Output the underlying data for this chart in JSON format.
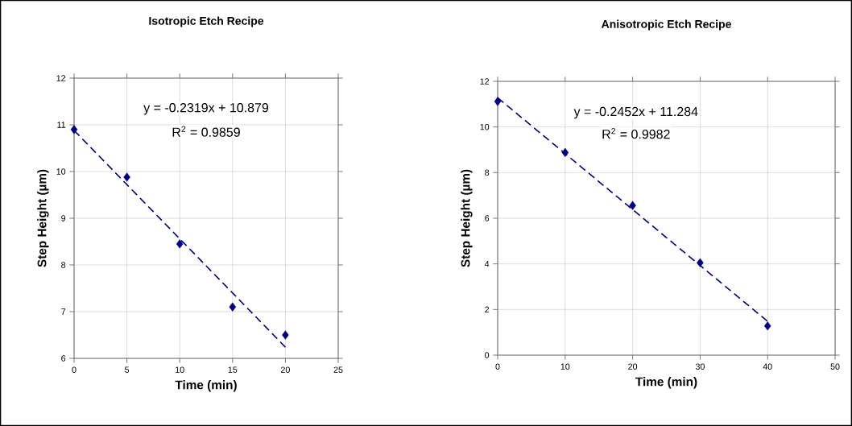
{
  "chart_data": [
    {
      "type": "scatter",
      "title": "Isotropic Etch Recipe",
      "xlabel": "Time (min)",
      "ylabel": "Step Height (µm)",
      "xlim": [
        0,
        25
      ],
      "ylim": [
        6,
        12
      ],
      "xticks": [
        0,
        5,
        10,
        15,
        20,
        25
      ],
      "yticks": [
        6,
        7,
        8,
        9,
        10,
        11,
        12
      ],
      "grid": true,
      "series": [
        {
          "marker": "diamond",
          "color": "#000080",
          "x": [
            0,
            5,
            10,
            15,
            20
          ],
          "values": [
            10.9,
            9.88,
            8.45,
            7.1,
            6.5
          ]
        },
        {
          "type": "line",
          "line_style": "dashed",
          "color": "#000080",
          "x": [
            0,
            20
          ],
          "values": [
            10.88,
            6.24
          ]
        }
      ],
      "annotations": [
        "y = -0.2319x + 10.879",
        "R$^{2}$ = 0.9859"
      ]
    },
    {
      "type": "scatter",
      "title": "Anisotropic Etch Recipe",
      "xlabel": "Time (min)",
      "ylabel": "Step Height (µm)",
      "xlim": [
        0,
        50
      ],
      "ylim": [
        0,
        12
      ],
      "xticks": [
        0,
        10,
        20,
        30,
        40,
        50
      ],
      "yticks": [
        0,
        2,
        4,
        6,
        8,
        10,
        12
      ],
      "grid": true,
      "series": [
        {
          "marker": "diamond",
          "color": "#000080",
          "x": [
            0,
            10,
            20,
            30,
            40
          ],
          "values": [
            11.12,
            8.88,
            6.56,
            4.05,
            1.28
          ]
        },
        {
          "type": "line",
          "line_style": "dashed",
          "color": "#000080",
          "x": [
            0,
            40
          ],
          "values": [
            11.28,
            1.48
          ]
        }
      ],
      "annotations": [
        "y = -0.2452x + 11.284",
        "R$^{2}$ = 0.9982"
      ]
    }
  ]
}
